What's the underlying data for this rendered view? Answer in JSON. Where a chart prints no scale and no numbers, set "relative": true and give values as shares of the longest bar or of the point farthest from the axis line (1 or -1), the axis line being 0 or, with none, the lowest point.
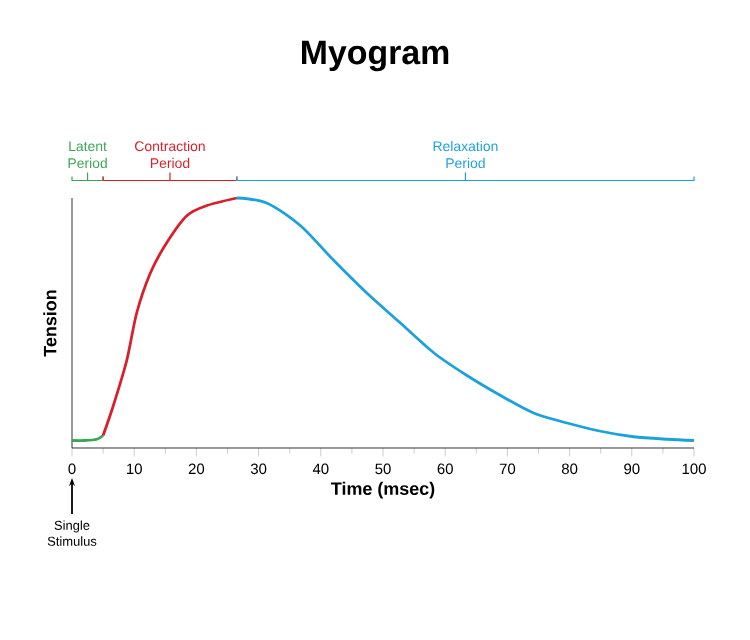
{
  "chart_data": {
    "type": "line",
    "title": "Myogram",
    "xlabel": "Time (msec)",
    "ylabel": "Tension",
    "relative": true,
    "xlim": [
      0,
      100
    ],
    "xticks": [
      0,
      10,
      20,
      30,
      40,
      50,
      60,
      70,
      80,
      90,
      100
    ],
    "series": [
      {
        "color": "#3aa655",
        "x": [
          0,
          2,
          4,
          5
        ],
        "values": [
          0.03,
          0.03,
          0.035,
          0.05
        ]
      },
      {
        "color": "#d9202a",
        "x": [
          5,
          6.65,
          8.8,
          10.4,
          12.6,
          15.2,
          18.5,
          21.7,
          26.5
        ],
        "values": [
          0.05,
          0.17,
          0.35,
          0.54,
          0.7,
          0.82,
          0.93,
          0.97,
          1.0
        ]
      },
      {
        "color": "#1ba1dc",
        "x": [
          26.5,
          31.3,
          36.7,
          42.1,
          47.4,
          52.8,
          58.2,
          63.5,
          68.9,
          74.2,
          79.6,
          85,
          90.3,
          95.7,
          100
        ],
        "values": [
          1.0,
          0.98,
          0.89,
          0.75,
          0.62,
          0.5,
          0.38,
          0.29,
          0.21,
          0.14,
          0.1,
          0.067,
          0.045,
          0.035,
          0.03
        ]
      }
    ],
    "annotations": [
      "Latent Period",
      "Contraction Period",
      "Relaxation Period",
      "Single Stimulus"
    ]
  }
}
